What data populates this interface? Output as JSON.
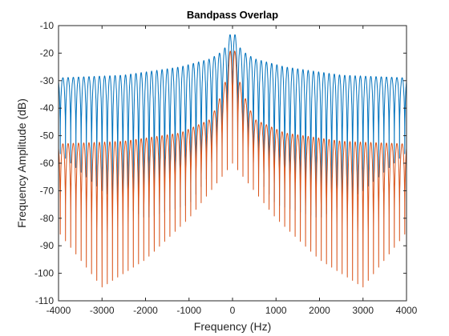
{
  "chart_data": {
    "type": "line",
    "title": "Bandpass Overlap",
    "xlabel": "Frequency (Hz)",
    "ylabel": "Frequency Amplitude (dB)",
    "xlim": [
      -4000,
      4000
    ],
    "ylim": [
      -110,
      -10
    ],
    "xticks": [
      -4000,
      -3000,
      -2000,
      -1000,
      0,
      1000,
      2000,
      3000,
      4000
    ],
    "yticks": [
      -110,
      -100,
      -90,
      -80,
      -70,
      -60,
      -50,
      -40,
      -30,
      -20,
      -10
    ],
    "grid": false,
    "legend": "none",
    "series": [
      {
        "color": "#0072BD",
        "description": "sidelobe envelope (peak dB) vs frequency",
        "envelope": {
          "x": [
            -4000,
            -2500,
            -1200,
            -500,
            -200,
            0,
            200,
            500,
            1200,
            2500,
            4000
          ],
          "y": [
            -29,
            -28,
            -25,
            -22,
            -19,
            -11,
            -19,
            -22,
            -25,
            -28,
            -29
          ]
        },
        "null_floor": {
          "x": [
            -4000,
            -3000,
            -2000,
            -1000,
            0,
            1000,
            2000,
            3000,
            4000
          ],
          "y": [
            -56,
            -70,
            -80,
            -75,
            -52,
            -75,
            -80,
            -70,
            -56
          ]
        },
        "lobe_spacing_hz": 120
      },
      {
        "color": "#D95319",
        "description": "sidelobe envelope (peak dB) vs frequency",
        "envelope": {
          "x": [
            -4000,
            -2500,
            -1200,
            -500,
            -200,
            0,
            200,
            500,
            1200,
            2500,
            4000
          ],
          "y": [
            -53,
            -52,
            -49,
            -44,
            -33,
            -14,
            -33,
            -44,
            -49,
            -52,
            -53
          ]
        },
        "null_floor": {
          "x": [
            -4000,
            -3000,
            -2000,
            -1000,
            0,
            1000,
            2000,
            3000,
            4000
          ],
          "y": [
            -85,
            -105,
            -95,
            -80,
            -60,
            -80,
            -95,
            -105,
            -85
          ]
        },
        "lobe_spacing_hz": 120
      }
    ]
  },
  "colors": {
    "axes": "#262626",
    "background": "#ffffff"
  }
}
